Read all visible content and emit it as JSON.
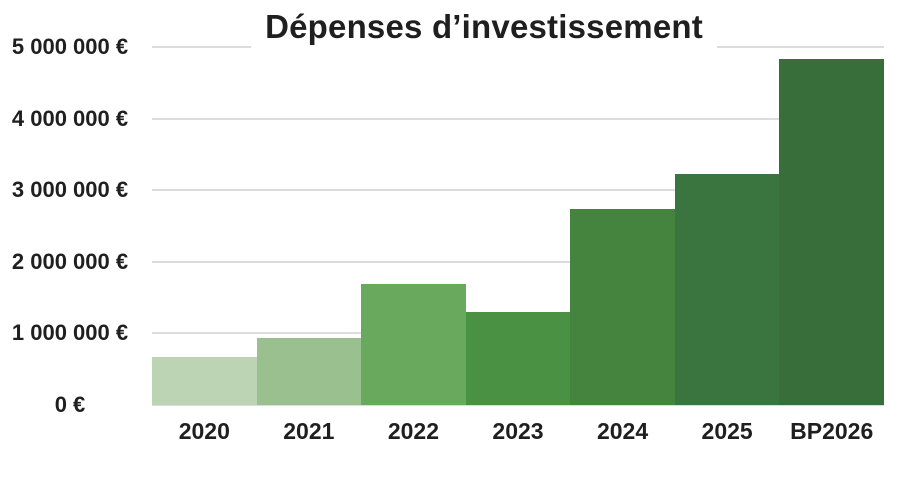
{
  "page": {
    "background_color": "#ffffff",
    "text_color": "#1f1f1f"
  },
  "chart_data": {
    "type": "bar",
    "title": "Dépenses d’investissement",
    "categories": [
      "2020",
      "2021",
      "2022",
      "2023",
      "2024",
      "2025",
      "BP2026"
    ],
    "values": [
      670000,
      940000,
      1690000,
      1300000,
      2740000,
      3230000,
      4830000
    ],
    "bar_colors": [
      "#bdd4b4",
      "#9ac08f",
      "#69a95e",
      "#4a9143",
      "#44843e",
      "#3a7540",
      "#376e39"
    ],
    "xlabel": "",
    "ylabel": "",
    "ylim": [
      0,
      5000000
    ],
    "y_tick_values": [
      5000000,
      4000000,
      3000000,
      2000000,
      1000000,
      0
    ],
    "y_tick_labels": [
      "5 000 000 €",
      "4 000 000 €",
      "3 000 000 €",
      "2 000 000 €",
      "1 000 000 €",
      "0 €"
    ],
    "grid": "horizontal",
    "gridline_color": "#dcdcdc",
    "legend": "none",
    "currency_symbol": "€"
  }
}
